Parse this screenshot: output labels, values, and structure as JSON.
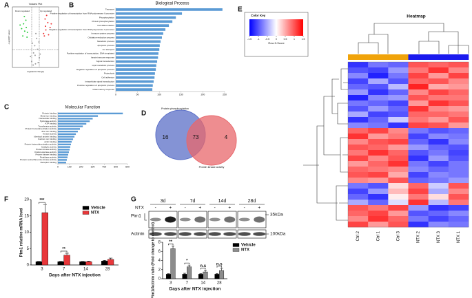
{
  "panel_labels": [
    "A",
    "B",
    "C",
    "D",
    "E",
    "F",
    "G"
  ],
  "chart_data": [
    {
      "type": "volcano",
      "title": "Volcano Plot",
      "x_label": "Log2(Fold change)",
      "y_label": "-Log10(P value)",
      "xlim": [
        -6,
        6
      ],
      "ylim": [
        0,
        5
      ],
      "series": [
        {
          "name": "Down regulated",
          "color": "#2ecc40",
          "x": [
            -2.2,
            -2.8,
            -3.1,
            -2.5,
            -3.6,
            -2.1,
            -4.0,
            -2.9,
            -3.3,
            -2.4
          ],
          "y": [
            2.5,
            3.0,
            3.6,
            3.9,
            3.2,
            2.9,
            3.5,
            4.2,
            2.6,
            3.3
          ]
        },
        {
          "name": "Up regulated",
          "color": "#ee3333",
          "x": [
            2.3,
            2.7,
            3.2,
            2.5,
            3.8,
            2.1,
            4.1,
            2.9,
            3.4,
            2.6
          ],
          "y": [
            2.6,
            3.1,
            3.7,
            4.0,
            3.3,
            2.8,
            3.6,
            4.3,
            2.7,
            3.4
          ]
        },
        {
          "color": "#9a9a9a",
          "x": [
            -1,
            -0.5,
            0,
            0.5,
            1,
            -0.8,
            0.3,
            0.7,
            -0.2,
            1.2,
            -1.3,
            0.1,
            -0.6,
            0.9,
            -0.1
          ],
          "y": [
            0.5,
            1.2,
            0.3,
            1.5,
            0.8,
            2.0,
            2.4,
            0.4,
            1.8,
            1.1,
            0.9,
            2.8,
            0.2,
            2.1,
            1.0
          ]
        }
      ]
    },
    {
      "type": "barh",
      "title": "Biological Process",
      "color": "#5b9bd5",
      "xlim": [
        0,
        250
      ],
      "xticks": [
        0,
        50,
        100,
        150,
        200,
        250
      ],
      "categories": [
        "Transport",
        "Positive regulation of transcription from RNA polymerase II promoter",
        "Phosphorylation",
        "Protein phosphorylation",
        "Cell differentiation",
        "Negative regulation of transcription from RNA polymerase II promoter",
        "Immune system process",
        "Oxidation-reduction process",
        "Metabolic process",
        "Apoptotic process",
        "Ion transport",
        "Positive regulation of transcription, DNA-templated",
        "Innate immune response",
        "Signal transduction",
        "Lipid metabolic process",
        "Negative regulation of apoptotic process",
        "Proteolysis",
        "Cell adhesion",
        "Intracellular signal transduction",
        "Positive regulation of apoptotic process",
        "Inflammatory response"
      ],
      "values": [
        245,
        152,
        138,
        130,
        122,
        114,
        109,
        106,
        103,
        101,
        100,
        98,
        97,
        95,
        93,
        92,
        90,
        89,
        87,
        85,
        84
      ]
    },
    {
      "type": "barh",
      "title": "Molecular Function",
      "color": "#5b9bd5",
      "xlim": [
        0,
        600
      ],
      "xticks": [
        0,
        100,
        200,
        300,
        400,
        500,
        600
      ],
      "categories": [
        "Protein binding",
        "Metal ion binding",
        "Nucleotide binding",
        "Hydrolase activity",
        "ATP binding",
        "Transferase activity",
        "Protein homodimerization activity",
        "Zinc ion binding",
        "Kinase activity",
        "Identical protein binding",
        "Calcium ion binding",
        "Actin binding",
        "Protein heterodimerization activity",
        "Catalytic activity",
        "Protein kinase activity",
        "Oxidoreductase activity",
        "Protein kinase binding",
        "Peptidase activity",
        "Protein serine/threonine kinase activity",
        "Receptor binding"
      ],
      "values": [
        560,
        345,
        300,
        275,
        245,
        215,
        190,
        172,
        155,
        143,
        131,
        119,
        113,
        107,
        101,
        95,
        89,
        83,
        77,
        71
      ]
    },
    {
      "type": "venn",
      "sets": [
        {
          "name": "Protein phosphorylation",
          "color": "#5b6fc7"
        },
        {
          "name": "Protein kinase activity",
          "color": "#e8676b"
        }
      ],
      "counts": [
        16,
        73,
        4
      ]
    },
    {
      "type": "heatmap",
      "title": "Heatmap",
      "color_key_title": "Color Key",
      "color_key_label": "Row Z-Score",
      "zlim": [
        -1.5,
        1.5
      ],
      "zticks": [
        -1.5,
        -1,
        -0.5,
        0,
        0.5,
        1,
        1.5
      ],
      "colors": [
        "#0000ff",
        "#ffffff",
        "#ff0000"
      ],
      "columns": [
        "Ctrl 2",
        "Ctrl 1",
        "Ctrl 3",
        "NTX 2",
        "NTX 3",
        "NTX 1"
      ],
      "column_colors": [
        "#f0a30a",
        "#f0a30a",
        "#f0a30a",
        "#1a1aee",
        "#1a1aee",
        "#1a1aee"
      ],
      "values": [
        [
          -1.2,
          -0.8,
          -0.9,
          1.0,
          0.9,
          1.0
        ],
        [
          -1.0,
          -1.1,
          -0.6,
          0.8,
          1.2,
          0.7
        ],
        [
          -0.7,
          -1.3,
          -0.8,
          1.1,
          0.6,
          1.1
        ],
        [
          -1.1,
          -0.5,
          -1.0,
          0.9,
          1.0,
          0.7
        ],
        [
          -0.9,
          -1.0,
          -0.4,
          1.3,
          0.5,
          0.6
        ],
        [
          -0.6,
          -1.2,
          -0.9,
          0.7,
          1.1,
          0.9
        ],
        [
          -1.3,
          -0.7,
          -0.6,
          1.0,
          0.8,
          0.8
        ],
        [
          -0.8,
          -0.9,
          -1.1,
          0.6,
          1.2,
          1.0
        ],
        [
          -1.0,
          -0.6,
          -0.9,
          1.2,
          0.7,
          0.6
        ],
        [
          -0.5,
          -1.1,
          -1.0,
          0.9,
          0.9,
          0.8
        ],
        [
          -1.2,
          -0.9,
          -0.3,
          0.8,
          0.6,
          1.0
        ],
        [
          -0.7,
          -0.8,
          -1.2,
          1.1,
          1.0,
          0.6
        ],
        [
          0.9,
          1.1,
          0.7,
          -0.8,
          -1.0,
          -0.9
        ],
        [
          1.2,
          0.6,
          0.8,
          -1.1,
          -0.7,
          -0.8
        ],
        [
          0.7,
          1.0,
          1.1,
          -0.9,
          -1.2,
          -0.7
        ],
        [
          1.0,
          0.9,
          0.6,
          -0.6,
          -0.9,
          -1.0
        ],
        [
          0.8,
          1.2,
          0.9,
          -1.0,
          -0.8,
          -1.1
        ],
        [
          1.1,
          0.7,
          1.0,
          -1.2,
          -0.6,
          -1.0
        ],
        [
          0.6,
          0.9,
          1.2,
          -0.8,
          -1.1,
          -0.8
        ],
        [
          0.9,
          0.8,
          0.7,
          -0.7,
          -0.9,
          -0.8
        ],
        [
          1.0,
          1.1,
          0.5,
          -1.1,
          -0.7,
          -0.8
        ],
        [
          0.7,
          0.6,
          1.0,
          -0.9,
          -0.8,
          -0.6
        ],
        [
          -0.8,
          -1.0,
          0.2,
          0.9,
          -0.3,
          1.0
        ],
        [
          -1.1,
          -0.6,
          0.4,
          1.1,
          -0.5,
          0.7
        ],
        [
          -0.9,
          -1.2,
          0.1,
          0.8,
          0.2,
          1.0
        ],
        [
          -0.5,
          -0.9,
          -0.2,
          1.2,
          -0.4,
          0.8
        ],
        [
          1.0,
          0.8,
          1.1,
          -0.6,
          -1.2,
          -1.1
        ],
        [
          0.9,
          1.1,
          0.6,
          -1.0,
          -0.9,
          -0.7
        ],
        [
          0.7,
          1.2,
          0.9,
          -0.8,
          -1.1,
          -0.9
        ],
        [
          1.1,
          0.6,
          1.0,
          -1.2,
          -0.7,
          -0.8
        ]
      ]
    },
    {
      "type": "bar",
      "y_label": "Pim1 relative mRNA level",
      "x_label": "Days after NTX injection",
      "categories": [
        "3",
        "7",
        "14",
        "28"
      ],
      "ylim": [
        0,
        20
      ],
      "yticks": [
        0,
        5,
        10,
        15,
        20
      ],
      "series": [
        {
          "name": "Vehicle",
          "color": "#000000",
          "values": [
            1,
            1,
            1,
            1.2
          ],
          "errors": [
            0.1,
            0.1,
            0.1,
            0.2
          ]
        },
        {
          "name": "NTX",
          "color": "#e8373a",
          "values": [
            16,
            3,
            1,
            1.7
          ],
          "errors": [
            2.5,
            0.6,
            0.2,
            0.4
          ]
        }
      ],
      "annotations": [
        {
          "text": "***",
          "category": "3"
        },
        {
          "text": "**",
          "category": "7"
        }
      ]
    },
    {
      "type": "bar",
      "y_label": "Pim1/Actinin ratio (Fold change to control)",
      "x_label": "Days after NTX injection",
      "categories": [
        "3",
        "7",
        "14",
        "28"
      ],
      "ylim": [
        0,
        8
      ],
      "yticks": [
        0,
        2,
        4,
        6,
        8
      ],
      "series": [
        {
          "name": "Vehicle",
          "color": "#000000",
          "values": [
            1,
            1,
            1,
            1
          ],
          "errors": [
            0.1,
            0.2,
            0.1,
            0.1
          ]
        },
        {
          "name": "NTX",
          "color": "#8c8c8c",
          "values": [
            6.6,
            2.6,
            1.5,
            1.8
          ],
          "errors": [
            0.6,
            0.4,
            0.4,
            0.5
          ]
        }
      ],
      "annotations": [
        {
          "text": "**",
          "category": "3"
        },
        {
          "text": "*",
          "category": "7"
        },
        {
          "text": "n.s",
          "category": "14"
        },
        {
          "text": "n.s",
          "category": "28"
        }
      ]
    }
  ],
  "blot": {
    "days": [
      "3d",
      "7d",
      "14d",
      "28d"
    ],
    "treatment_label": "NTX",
    "signs": [
      "-",
      "+"
    ],
    "rows": [
      "Pim1",
      "Actinin"
    ],
    "markers": [
      "35kDa",
      "100kDa"
    ]
  }
}
